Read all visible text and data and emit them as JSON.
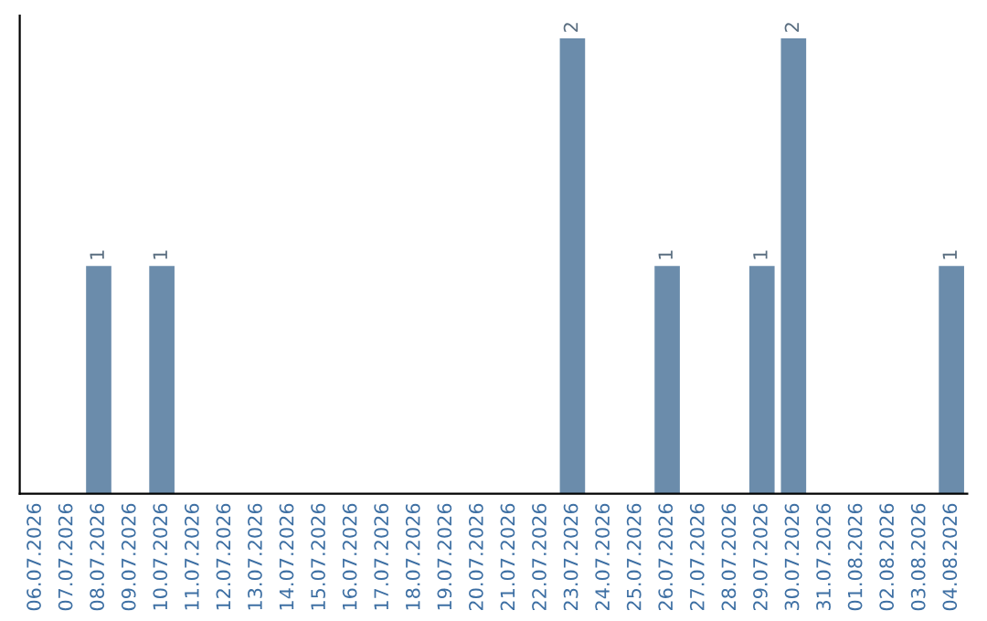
{
  "chart_data": {
    "type": "bar",
    "categories": [
      "06.07.2026",
      "07.07.2026",
      "08.07.2026",
      "09.07.2026",
      "10.07.2026",
      "11.07.2026",
      "12.07.2026",
      "13.07.2026",
      "14.07.2026",
      "15.07.2026",
      "16.07.2026",
      "17.07.2026",
      "18.07.2026",
      "19.07.2026",
      "20.07.2026",
      "21.07.2026",
      "22.07.2026",
      "23.07.2026",
      "24.07.2026",
      "25.07.2026",
      "26.07.2026",
      "27.07.2026",
      "28.07.2026",
      "29.07.2026",
      "30.07.2026",
      "31.07.2026",
      "01.08.2026",
      "02.08.2026",
      "03.08.2026",
      "04.08.2026"
    ],
    "values": [
      0,
      0,
      1,
      0,
      1,
      0,
      0,
      0,
      0,
      0,
      0,
      0,
      0,
      0,
      0,
      0,
      0,
      2,
      0,
      0,
      1,
      0,
      0,
      1,
      2,
      0,
      0,
      0,
      0,
      1
    ],
    "value_labels": [
      null,
      null,
      "1",
      null,
      "1",
      null,
      null,
      null,
      null,
      null,
      null,
      null,
      null,
      null,
      null,
      null,
      null,
      "2",
      null,
      null,
      "1",
      null,
      null,
      "1",
      "2",
      null,
      null,
      null,
      null,
      "1"
    ],
    "color": "#6b8cab",
    "ylim": [
      0,
      2.1
    ],
    "tick_labels": "x",
    "grid": false,
    "legend": false
  }
}
